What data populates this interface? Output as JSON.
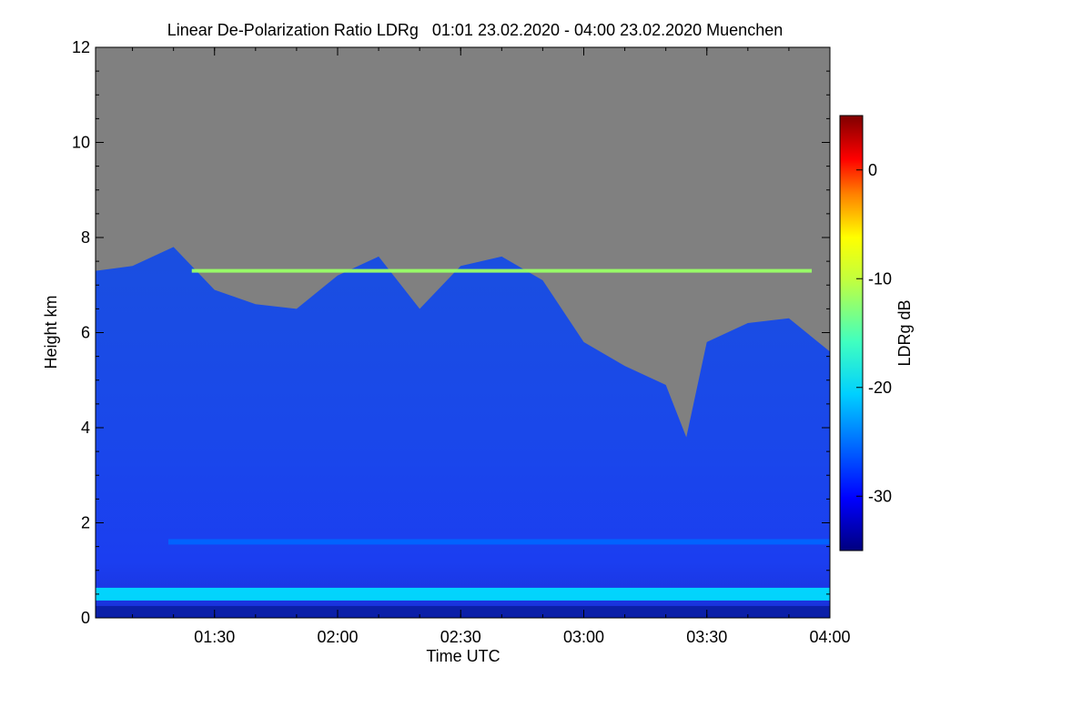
{
  "chart_data": {
    "type": "heatmap",
    "title": "Linear De-Polarization Ratio LDRg   01:01 23.02.2020 - 04:00 23.02.2020 Muenchen",
    "xlabel": "Time UTC",
    "ylabel": "Height km",
    "colorbar_label": "LDRg dB",
    "x_range": [
      "01:01",
      "04:00"
    ],
    "x_ticks": [
      {
        "value": "01:30",
        "label": "01:30"
      },
      {
        "value": "02:00",
        "label": "02:00"
      },
      {
        "value": "02:30",
        "label": "02:30"
      },
      {
        "value": "03:00",
        "label": "03:00"
      },
      {
        "value": "03:30",
        "label": "03:30"
      },
      {
        "value": "04:00",
        "label": "04:00"
      }
    ],
    "y_range": [
      0,
      12
    ],
    "y_ticks": [
      0,
      2,
      4,
      6,
      8,
      10,
      12
    ],
    "colorbar_range": [
      -35,
      5
    ],
    "colorbar_ticks": [
      0,
      -10,
      -20,
      -30
    ],
    "colormap": "jet",
    "no_data_color": "#808080",
    "signal_top_km": [
      {
        "time": "01:01",
        "height": 7.3
      },
      {
        "time": "01:10",
        "height": 7.4
      },
      {
        "time": "01:20",
        "height": 7.8
      },
      {
        "time": "01:30",
        "height": 6.9
      },
      {
        "time": "01:40",
        "height": 6.6
      },
      {
        "time": "01:50",
        "height": 6.5
      },
      {
        "time": "02:00",
        "height": 7.2
      },
      {
        "time": "02:10",
        "height": 7.6
      },
      {
        "time": "02:20",
        "height": 6.5
      },
      {
        "time": "02:30",
        "height": 7.4
      },
      {
        "time": "02:40",
        "height": 7.6
      },
      {
        "time": "02:50",
        "height": 7.1
      },
      {
        "time": "03:00",
        "height": 5.8
      },
      {
        "time": "03:10",
        "height": 5.3
      },
      {
        "time": "03:20",
        "height": 4.9
      },
      {
        "time": "03:25",
        "height": 3.8
      },
      {
        "time": "03:30",
        "height": 5.8
      },
      {
        "time": "03:40",
        "height": 6.2
      },
      {
        "time": "03:50",
        "height": 6.3
      },
      {
        "time": "04:00",
        "height": 5.6
      }
    ],
    "layers": [
      {
        "height_km": 0.5,
        "ldr_db": -21
      },
      {
        "height_km": 1.6,
        "ldr_db": -26
      },
      {
        "height_km": 7.3,
        "ldr_db": -14
      }
    ]
  }
}
